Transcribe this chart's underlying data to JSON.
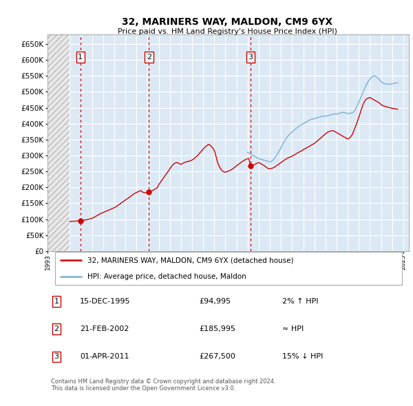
{
  "title": "32, MARINERS WAY, MALDON, CM9 6YX",
  "subtitle": "Price paid vs. HM Land Registry's House Price Index (HPI)",
  "ylabel_ticks": [
    0,
    50000,
    100000,
    150000,
    200000,
    250000,
    300000,
    350000,
    400000,
    450000,
    500000,
    550000,
    600000,
    650000
  ],
  "ylim": [
    0,
    680000
  ],
  "xlim_start": 1993.0,
  "xlim_end": 2025.5,
  "hatch_end_year": 1995.0,
  "sale_points": [
    {
      "year": 1995.96,
      "price": 94995,
      "label": "1"
    },
    {
      "year": 2002.13,
      "price": 185995,
      "label": "2"
    },
    {
      "year": 2011.25,
      "price": 267500,
      "label": "3"
    }
  ],
  "sale_vlines": [
    1995.96,
    2002.13,
    2011.25
  ],
  "property_color": "#cc0000",
  "hpi_color": "#7aafd4",
  "hatch_facecolor": "#e8e8e8",
  "hatch_edgecolor": "#bbbbbb",
  "legend_property": "32, MARINERS WAY, MALDON, CM9 6YX (detached house)",
  "legend_hpi": "HPI: Average price, detached house, Maldon",
  "table_rows": [
    {
      "num": "1",
      "date": "15-DEC-1995",
      "price": "£94,995",
      "note": "2% ↑ HPI"
    },
    {
      "num": "2",
      "date": "21-FEB-2002",
      "price": "£185,995",
      "note": "≈ HPI"
    },
    {
      "num": "3",
      "date": "01-APR-2011",
      "price": "£267,500",
      "note": "15% ↓ HPI"
    }
  ],
  "footnote": "Contains HM Land Registry data © Crown copyright and database right 2024.\nThis data is licensed under the Open Government Licence v3.0.",
  "background_color": "#ffffff",
  "plot_bg_color": "#dce9f5",
  "grid_color": "#ffffff",
  "prop_line_x": [
    1995.0,
    1995.1,
    1995.2,
    1995.3,
    1995.4,
    1995.5,
    1995.6,
    1995.7,
    1995.8,
    1995.96,
    1996.0,
    1996.1,
    1996.2,
    1996.3,
    1996.5,
    1996.7,
    1996.9,
    1997.0,
    1997.2,
    1997.4,
    1997.6,
    1997.8,
    1998.0,
    1998.2,
    1998.4,
    1998.6,
    1998.8,
    1999.0,
    1999.2,
    1999.4,
    1999.6,
    1999.8,
    2000.0,
    2000.2,
    2000.4,
    2000.6,
    2000.8,
    2001.0,
    2001.2,
    2001.4,
    2001.6,
    2001.8,
    2002.0,
    2002.13,
    2002.3,
    2002.5,
    2002.7,
    2002.9,
    2003.0,
    2003.2,
    2003.4,
    2003.6,
    2003.8,
    2004.0,
    2004.2,
    2004.4,
    2004.6,
    2004.8,
    2005.0,
    2005.1,
    2005.2,
    2005.3,
    2005.4,
    2005.5,
    2005.6,
    2005.7,
    2005.8,
    2005.9,
    2006.0,
    2006.1,
    2006.2,
    2006.3,
    2006.5,
    2006.7,
    2006.9,
    2007.0,
    2007.1,
    2007.2,
    2007.3,
    2007.4,
    2007.5,
    2007.6,
    2007.7,
    2007.8,
    2007.9,
    2008.0,
    2008.1,
    2008.2,
    2008.3,
    2008.5,
    2008.7,
    2008.9,
    2009.0,
    2009.2,
    2009.4,
    2009.6,
    2009.8,
    2010.0,
    2010.2,
    2010.4,
    2010.6,
    2010.8,
    2011.0,
    2011.1,
    2011.25,
    2011.4,
    2011.6,
    2011.8,
    2012.0,
    2012.1,
    2012.2,
    2012.3,
    2012.4,
    2012.5,
    2012.6,
    2012.8,
    2013.0,
    2013.2,
    2013.4,
    2013.6,
    2013.8,
    2014.0,
    2014.2,
    2014.4,
    2014.6,
    2014.8,
    2015.0,
    2015.2,
    2015.4,
    2015.6,
    2015.8,
    2016.0,
    2016.2,
    2016.4,
    2016.6,
    2016.8,
    2017.0,
    2017.2,
    2017.4,
    2017.6,
    2017.8,
    2018.0,
    2018.1,
    2018.2,
    2018.3,
    2018.4,
    2018.5,
    2018.6,
    2018.7,
    2018.8,
    2018.9,
    2019.0,
    2019.1,
    2019.2,
    2019.3,
    2019.4,
    2019.5,
    2019.6,
    2019.7,
    2019.8,
    2019.9,
    2020.0,
    2020.2,
    2020.4,
    2020.6,
    2020.8,
    2021.0,
    2021.2,
    2021.4,
    2021.6,
    2021.8,
    2022.0,
    2022.1,
    2022.2,
    2022.3,
    2022.4,
    2022.5,
    2022.6,
    2022.7,
    2022.8,
    2022.9,
    2023.0,
    2023.1,
    2023.2,
    2023.3,
    2023.4,
    2023.5,
    2023.6,
    2023.8,
    2024.0,
    2024.2,
    2024.4,
    2024.5
  ],
  "prop_line_y": [
    93000,
    93200,
    93400,
    93600,
    93800,
    94000,
    94200,
    94400,
    94700,
    94995,
    95200,
    95500,
    96000,
    97000,
    98500,
    100000,
    101500,
    103000,
    106000,
    110000,
    114000,
    118000,
    121000,
    124000,
    127000,
    130000,
    133000,
    136000,
    140000,
    145000,
    150000,
    155000,
    160000,
    165000,
    170000,
    175000,
    180000,
    184000,
    187000,
    190000,
    184000,
    183000,
    183500,
    185995,
    188000,
    191000,
    195000,
    200000,
    208000,
    218000,
    228000,
    238000,
    248000,
    258000,
    268000,
    275000,
    278000,
    276000,
    272000,
    274000,
    276000,
    278000,
    279000,
    280000,
    281000,
    282000,
    283000,
    284000,
    286000,
    288000,
    291000,
    294000,
    300000,
    308000,
    316000,
    320000,
    324000,
    327000,
    330000,
    333000,
    335000,
    333000,
    330000,
    326000,
    322000,
    316000,
    305000,
    292000,
    278000,
    262000,
    252000,
    248000,
    248000,
    250000,
    253000,
    257000,
    262000,
    268000,
    273000,
    278000,
    283000,
    287000,
    290000,
    291000,
    267500,
    268000,
    271000,
    275000,
    278000,
    276000,
    274000,
    272000,
    270000,
    268000,
    265000,
    260000,
    258000,
    260000,
    263000,
    268000,
    273000,
    278000,
    283000,
    288000,
    292000,
    295000,
    298000,
    302000,
    306000,
    310000,
    314000,
    318000,
    322000,
    326000,
    330000,
    334000,
    338000,
    344000,
    350000,
    356000,
    362000,
    368000,
    371000,
    373000,
    375000,
    376000,
    377000,
    378000,
    378000,
    376000,
    374000,
    372000,
    370000,
    368000,
    366000,
    364000,
    362000,
    360000,
    358000,
    356000,
    354000,
    352000,
    356000,
    365000,
    382000,
    400000,
    420000,
    442000,
    462000,
    475000,
    480000,
    482000,
    480000,
    478000,
    476000,
    474000,
    472000,
    470000,
    468000,
    466000,
    464000,
    460000,
    458000,
    456000,
    455000,
    454000,
    453000,
    452000,
    450000,
    448000,
    447000,
    446000,
    445000
  ],
  "hpi_line_x": [
    2011.0,
    2011.1,
    2011.2,
    2011.3,
    2011.4,
    2011.5,
    2011.6,
    2011.7,
    2011.8,
    2011.9,
    2012.0,
    2012.1,
    2012.2,
    2012.3,
    2012.4,
    2012.5,
    2012.6,
    2012.7,
    2012.8,
    2012.9,
    2013.0,
    2013.1,
    2013.2,
    2013.3,
    2013.4,
    2013.5,
    2013.6,
    2013.7,
    2013.8,
    2013.9,
    2014.0,
    2014.1,
    2014.2,
    2014.3,
    2014.4,
    2014.5,
    2014.6,
    2014.7,
    2014.8,
    2014.9,
    2015.0,
    2015.1,
    2015.2,
    2015.3,
    2015.4,
    2015.5,
    2015.6,
    2015.7,
    2015.8,
    2015.9,
    2016.0,
    2016.1,
    2016.2,
    2016.3,
    2016.4,
    2016.5,
    2016.6,
    2016.7,
    2016.8,
    2016.9,
    2017.0,
    2017.1,
    2017.2,
    2017.3,
    2017.4,
    2017.5,
    2017.6,
    2017.7,
    2017.8,
    2017.9,
    2018.0,
    2018.1,
    2018.2,
    2018.3,
    2018.4,
    2018.5,
    2018.6,
    2018.7,
    2018.8,
    2018.9,
    2019.0,
    2019.1,
    2019.2,
    2019.3,
    2019.4,
    2019.5,
    2019.6,
    2019.7,
    2019.8,
    2019.9,
    2020.0,
    2020.1,
    2020.2,
    2020.3,
    2020.4,
    2020.5,
    2020.6,
    2020.7,
    2020.8,
    2020.9,
    2021.0,
    2021.1,
    2021.2,
    2021.3,
    2021.4,
    2021.5,
    2021.6,
    2021.7,
    2021.8,
    2021.9,
    2022.0,
    2022.1,
    2022.2,
    2022.3,
    2022.4,
    2022.5,
    2022.6,
    2022.7,
    2022.8,
    2022.9,
    2023.0,
    2023.1,
    2023.2,
    2023.3,
    2023.4,
    2023.5,
    2023.6,
    2023.7,
    2023.8,
    2023.9,
    2024.0,
    2024.1,
    2024.2,
    2024.3,
    2024.4,
    2024.5
  ],
  "hpi_line_y": [
    310000,
    308000,
    306000,
    304000,
    302000,
    300000,
    298000,
    296000,
    294000,
    292000,
    290000,
    289000,
    288000,
    287000,
    286000,
    285000,
    284000,
    283000,
    282000,
    281000,
    280000,
    281000,
    283000,
    286000,
    290000,
    295000,
    300000,
    306000,
    312000,
    318000,
    325000,
    332000,
    338000,
    344000,
    350000,
    355000,
    360000,
    364000,
    368000,
    371000,
    374000,
    377000,
    380000,
    383000,
    386000,
    389000,
    392000,
    394000,
    396000,
    398000,
    400000,
    402000,
    404000,
    406000,
    408000,
    410000,
    412000,
    413000,
    414000,
    415000,
    416000,
    417000,
    418000,
    419000,
    420000,
    421000,
    422000,
    423000,
    424000,
    424000,
    424000,
    424000,
    425000,
    426000,
    427000,
    428000,
    429000,
    430000,
    430000,
    430000,
    430000,
    431000,
    432000,
    433000,
    434000,
    435000,
    435000,
    435000,
    434000,
    433000,
    432000,
    432000,
    432000,
    433000,
    434000,
    436000,
    440000,
    445000,
    452000,
    460000,
    468000,
    476000,
    484000,
    492000,
    500000,
    508000,
    516000,
    524000,
    530000,
    536000,
    540000,
    544000,
    547000,
    549000,
    550000,
    549000,
    547000,
    544000,
    540000,
    536000,
    532000,
    529000,
    527000,
    526000,
    525000,
    524000,
    524000,
    524000,
    524000,
    524000,
    525000,
    526000,
    527000,
    528000,
    528000,
    528000
  ]
}
